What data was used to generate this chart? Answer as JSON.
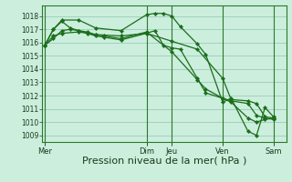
{
  "bg_color": "#cceedd",
  "grid_color": "#99ccbb",
  "line_color": "#1a6e1a",
  "marker_color": "#1a6e1a",
  "xlabel": "Pression niveau de la mer( hPa )",
  "xlabel_fontsize": 8,
  "ylim": [
    1008.5,
    1018.8
  ],
  "yticks": [
    1009,
    1010,
    1011,
    1012,
    1013,
    1014,
    1015,
    1016,
    1017,
    1018
  ],
  "xlim": [
    -0.3,
    28.5
  ],
  "xtick_labels": [
    "Mer",
    "Dim",
    "Jeu",
    "Ven",
    "Sam"
  ],
  "xtick_positions": [
    0,
    12,
    15,
    21,
    27
  ],
  "vlines": [
    0,
    12,
    15,
    21,
    27
  ],
  "series": [
    {
      "x": [
        0,
        1,
        2,
        3,
        4,
        5,
        6,
        7,
        9,
        12,
        15,
        18,
        19,
        21,
        22,
        24,
        25,
        26,
        27
      ],
      "y": [
        1015.8,
        1016.3,
        1016.9,
        1017.0,
        1016.9,
        1016.8,
        1016.6,
        1016.5,
        1016.3,
        1016.8,
        1015.3,
        1013.2,
        1012.5,
        1011.8,
        1011.5,
        1010.3,
        1010.0,
        1010.2,
        1010.3
      ]
    },
    {
      "x": [
        0,
        1,
        2,
        3,
        4,
        5,
        6,
        7,
        9,
        12,
        15,
        18,
        21,
        22,
        24,
        25,
        26,
        27
      ],
      "y": [
        1015.8,
        1017.0,
        1017.6,
        1017.1,
        1016.9,
        1016.7,
        1016.5,
        1016.4,
        1016.2,
        1016.7,
        1016.1,
        1015.5,
        1013.3,
        1011.7,
        1011.6,
        1011.4,
        1010.4,
        1010.3
      ]
    },
    {
      "x": [
        0,
        1,
        2,
        4,
        6,
        9,
        12,
        13,
        14,
        15,
        16,
        18,
        19,
        21,
        22,
        24,
        25,
        26,
        27
      ],
      "y": [
        1015.8,
        1017.0,
        1017.7,
        1017.7,
        1017.1,
        1016.9,
        1018.1,
        1018.2,
        1018.2,
        1018.0,
        1017.2,
        1015.9,
        1015.1,
        1011.5,
        1011.8,
        1009.3,
        1009.0,
        1011.1,
        1010.4
      ]
    },
    {
      "x": [
        0,
        1,
        2,
        4,
        6,
        9,
        12,
        13,
        14,
        15,
        16,
        18,
        19,
        21,
        22,
        24,
        25,
        26,
        27
      ],
      "y": [
        1015.8,
        1016.5,
        1016.7,
        1016.8,
        1016.6,
        1016.5,
        1016.7,
        1016.9,
        1015.8,
        1015.6,
        1015.5,
        1013.3,
        1012.2,
        1011.8,
        1011.6,
        1011.4,
        1010.5,
        1010.3,
        1010.2
      ]
    }
  ]
}
